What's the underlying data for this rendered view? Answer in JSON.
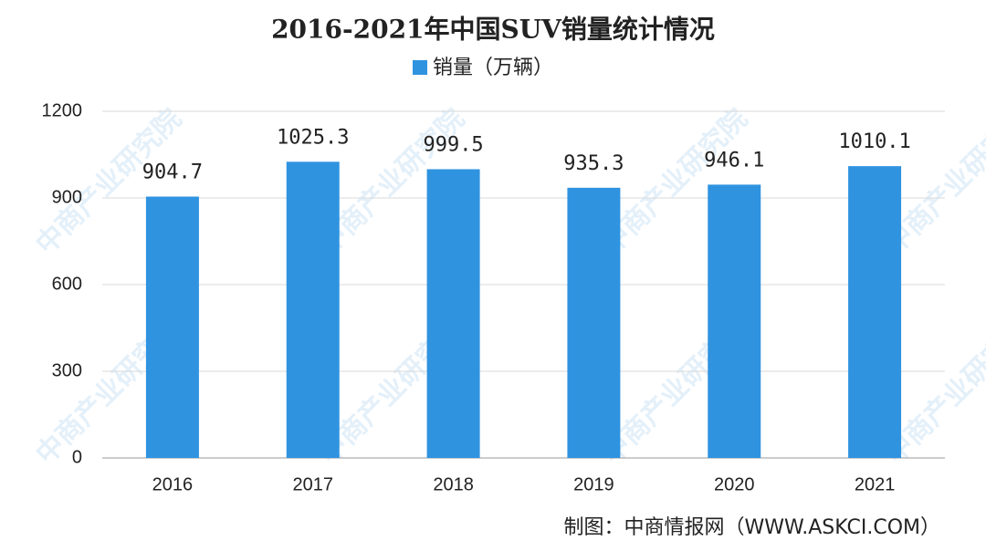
{
  "chart_data": {
    "type": "bar",
    "title": "2016-2021年中国SUV销量统计情况",
    "categories": [
      "2016",
      "2017",
      "2018",
      "2019",
      "2020",
      "2021"
    ],
    "series": [
      {
        "name": "销量（万辆）",
        "color": "#2f93e0",
        "values": [
          904.7,
          1025.3,
          999.5,
          935.3,
          946.1,
          1010.1
        ]
      }
    ],
    "ylim": [
      0,
      1200
    ],
    "yticks": [
      0,
      300,
      600,
      900,
      1200
    ],
    "grid": true,
    "source": "制图：中商情报网（WWW.ASKCI.COM）",
    "watermark": "中商产业研究院"
  }
}
